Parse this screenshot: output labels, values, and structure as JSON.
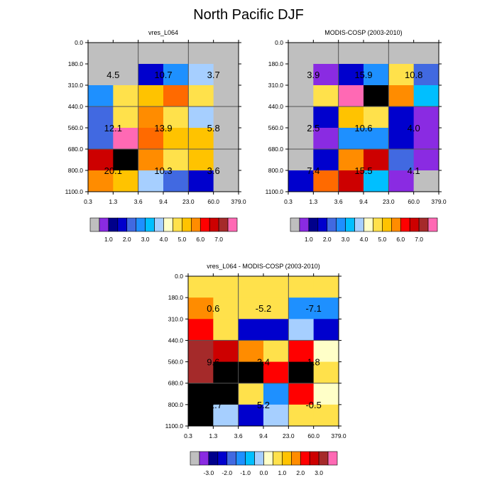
{
  "title": "North Pacific DJF",
  "chart_data": [
    {
      "type": "heatmap",
      "title": "vres_L064",
      "y_tick_labels": [
        "0.0",
        "180.0",
        "310.0",
        "440.0",
        "560.0",
        "680.0",
        "800.0",
        "1100.0"
      ],
      "x_tick_labels": [
        "0.3",
        "1.3",
        "3.6",
        "9.4",
        "23.0",
        "60.0",
        "379.0"
      ],
      "cells": [
        [
          0,
          0,
          0,
          0,
          0,
          0
        ],
        [
          0,
          0,
          3,
          5,
          7,
          0
        ],
        [
          5,
          9,
          10,
          12,
          9,
          0
        ],
        [
          4,
          9,
          11,
          9,
          7,
          0
        ],
        [
          4,
          16,
          12,
          10,
          10,
          0
        ],
        [
          14,
          19,
          11,
          9,
          10,
          0
        ],
        [
          11,
          10,
          7,
          4,
          3,
          0
        ]
      ],
      "annotations": [
        {
          "text": "4.5",
          "col": 1,
          "row": 2
        },
        {
          "text": "10.7",
          "col": 3,
          "row": 2
        },
        {
          "text": "3.7",
          "col": 5,
          "row": 2
        },
        {
          "text": "12.1",
          "col": 1,
          "row": 4
        },
        {
          "text": "13.9",
          "col": 3,
          "row": 4
        },
        {
          "text": "5.8",
          "col": 5,
          "row": 4
        },
        {
          "text": "20.1",
          "col": 1,
          "row": 6
        },
        {
          "text": "10.3",
          "col": 3,
          "row": 6
        },
        {
          "text": "3.6",
          "col": 5,
          "row": 6
        }
      ],
      "colorbar_labels": [
        "1.0",
        "2.0",
        "3.0",
        "4.0",
        "5.0",
        "6.0",
        "7.0"
      ]
    },
    {
      "type": "heatmap",
      "title": "MODIS-COSP (2003-2010)",
      "y_tick_labels": [
        "0.0",
        "180.0",
        "310.0",
        "440.0",
        "560.0",
        "680.0",
        "800.0",
        "1100.0"
      ],
      "x_tick_labels": [
        "0.3",
        "1.3",
        "3.6",
        "9.4",
        "23.0",
        "60.0",
        "379.0"
      ],
      "cells": [
        [
          0,
          0,
          0,
          0,
          0,
          0
        ],
        [
          0,
          1,
          3,
          5,
          9,
          4
        ],
        [
          0,
          9,
          16,
          18,
          11,
          6
        ],
        [
          0,
          3,
          10,
          9,
          3,
          1
        ],
        [
          0,
          1,
          5,
          5,
          3,
          1
        ],
        [
          0,
          3,
          11,
          14,
          4,
          1
        ],
        [
          3,
          12,
          14,
          6,
          1,
          0
        ]
      ],
      "annotations": [
        {
          "text": "3.9",
          "col": 1,
          "row": 2
        },
        {
          "text": "15.9",
          "col": 3,
          "row": 2
        },
        {
          "text": "10.8",
          "col": 5,
          "row": 2
        },
        {
          "text": "2.5",
          "col": 1,
          "row": 4
        },
        {
          "text": "10.6",
          "col": 3,
          "row": 4
        },
        {
          "text": "4.0",
          "col": 5,
          "row": 4
        },
        {
          "text": "7.4",
          "col": 1,
          "row": 6
        },
        {
          "text": "15.5",
          "col": 3,
          "row": 6
        },
        {
          "text": "4.1",
          "col": 5,
          "row": 6
        }
      ],
      "colorbar_labels": [
        "1.0",
        "2.0",
        "3.0",
        "4.0",
        "5.0",
        "6.0",
        "7.0"
      ]
    },
    {
      "type": "heatmap",
      "title": "vres_L064 - MODIS-COSP (2003-2010)",
      "y_tick_labels": [
        "0.0",
        "180.0",
        "310.0",
        "440.0",
        "560.0",
        "680.0",
        "800.0",
        "1100.0"
      ],
      "x_tick_labels": [
        "0.3",
        "1.3",
        "3.6",
        "9.4",
        "23.0",
        "60.0",
        "379.0"
      ],
      "cells": [
        [
          9,
          9,
          9,
          9,
          9,
          9
        ],
        [
          11,
          9,
          9,
          9,
          5,
          5
        ],
        [
          13,
          9,
          3,
          3,
          7,
          3
        ],
        [
          15,
          14,
          11,
          9,
          13,
          8
        ],
        [
          15,
          19,
          17,
          13,
          17,
          9
        ],
        [
          19,
          19,
          9,
          5,
          13,
          8
        ],
        [
          17,
          7,
          3,
          7,
          9,
          9
        ]
      ],
      "annotations": [
        {
          "text": "0.6",
          "col": 1,
          "row": 2
        },
        {
          "text": "-5.2",
          "col": 3,
          "row": 2
        },
        {
          "text": "-7.1",
          "col": 5,
          "row": 2
        },
        {
          "text": "9.6",
          "col": 1,
          "row": 4
        },
        {
          "text": "3.4",
          "col": 3,
          "row": 4
        },
        {
          "text": "1.8",
          "col": 5,
          "row": 4
        },
        {
          "text": "12.7",
          "col": 1,
          "row": 6
        },
        {
          "text": "5.2",
          "col": 3,
          "row": 6
        },
        {
          "text": "-0.5",
          "col": 5,
          "row": 6
        }
      ],
      "colorbar_labels": [
        "-3.0",
        "-2.0",
        "-1.0",
        "0.0",
        "1.0",
        "2.0",
        "3.0"
      ]
    }
  ],
  "palette": [
    "#bfbfbf",
    "#8a2be2",
    "#00008b",
    "#0000cd",
    "#4169e1",
    "#1e90ff",
    "#00bfff",
    "#a6cfff",
    "#ffffc8",
    "#ffe14b",
    "#ffc300",
    "#ff8c00",
    "#ff6a00",
    "#ff0000",
    "#cd0000",
    "#a52a2a",
    "#ff69b4"
  ],
  "colorbar_colors": [
    "#bfbfbf",
    "#8a2be2",
    "#00008b",
    "#0000cd",
    "#4169e1",
    "#1e90ff",
    "#00bfff",
    "#a6cfff",
    "#ffffc8",
    "#ffe14b",
    "#ffc300",
    "#ff8c00",
    "#ff0000",
    "#cd0000",
    "#a52a2a",
    "#ff69b4"
  ],
  "diff_colorbar_colors": [
    "#bfbfbf",
    "#8a2be2",
    "#00008b",
    "#0000cd",
    "#4169e1",
    "#1e90ff",
    "#00bfff",
    "#a6cfff",
    "#ffffc8",
    "#ffe14b",
    "#ffc300",
    "#ff8c00",
    "#ff0000",
    "#cd0000",
    "#a52a2a",
    "#ff69b4"
  ]
}
